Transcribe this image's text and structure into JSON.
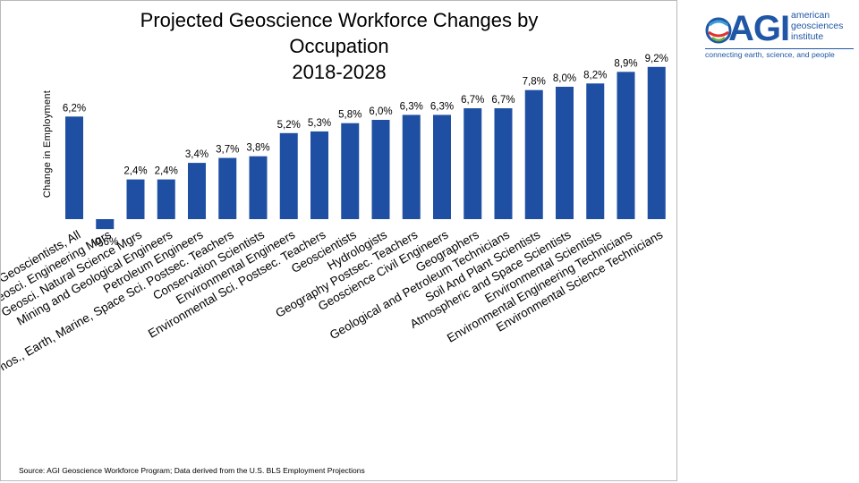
{
  "chart_data": {
    "type": "bar",
    "title_lines": [
      "Projected Geoscience Workforce Changes by",
      "Occupation",
      "2018-2028"
    ],
    "ylabel": "Change in Employment",
    "xlabel": "",
    "grid": false,
    "legend": "none",
    "ylim": [
      -0.8,
      9.5
    ],
    "categories": [
      "Geoscientists, All",
      "Geosci. Engineering Mgrs",
      "Geosci. Natural Science Mgrs",
      "Mining and Geological Engineers",
      "Petroleum Engineers",
      "Atmos., Earth, Marine, Space Sci. Postsec. Teachers",
      "Conservation Scientists",
      "Environmental Engineers",
      "Environmental Sci. Postsec. Teachers",
      "Geoscientists",
      "Hydrologists",
      "Geography Postsec. Teachers",
      "Geoscience Civil Engineers",
      "Geographers",
      "Geological and Petroleum Technicians",
      "Soil And Plant Scientists",
      "Atmospheric and Space Scientists",
      "Environmental Scientists",
      "Environmental Engineering Technicians",
      "Environmental Science Technicians"
    ],
    "values": [
      6.2,
      -0.6,
      2.4,
      2.4,
      3.4,
      3.7,
      3.8,
      5.2,
      5.3,
      5.8,
      6.0,
      6.3,
      6.3,
      6.7,
      6.7,
      7.8,
      8.0,
      8.2,
      8.9,
      9.2
    ],
    "value_labels": [
      "6,2%",
      "-0,6%",
      "2,4%",
      "2,4%",
      "3,4%",
      "3,7%",
      "3,8%",
      "5,2%",
      "5,3%",
      "5,8%",
      "6,0%",
      "6,3%",
      "6,3%",
      "6,7%",
      "6,7%",
      "7,8%",
      "8,0%",
      "8,2%",
      "8,9%",
      "9,2%"
    ],
    "bar_color": "#1f4fa3",
    "source": "Source: AGI Geoscience Workforce Program; Data derived from the U.S. BLS Employment Projections"
  },
  "logo": {
    "wordmark": "AGI",
    "lines": [
      "american",
      "geosciences",
      "institute"
    ],
    "tagline": "connecting earth, science, and people",
    "color": "#1f56a5"
  }
}
